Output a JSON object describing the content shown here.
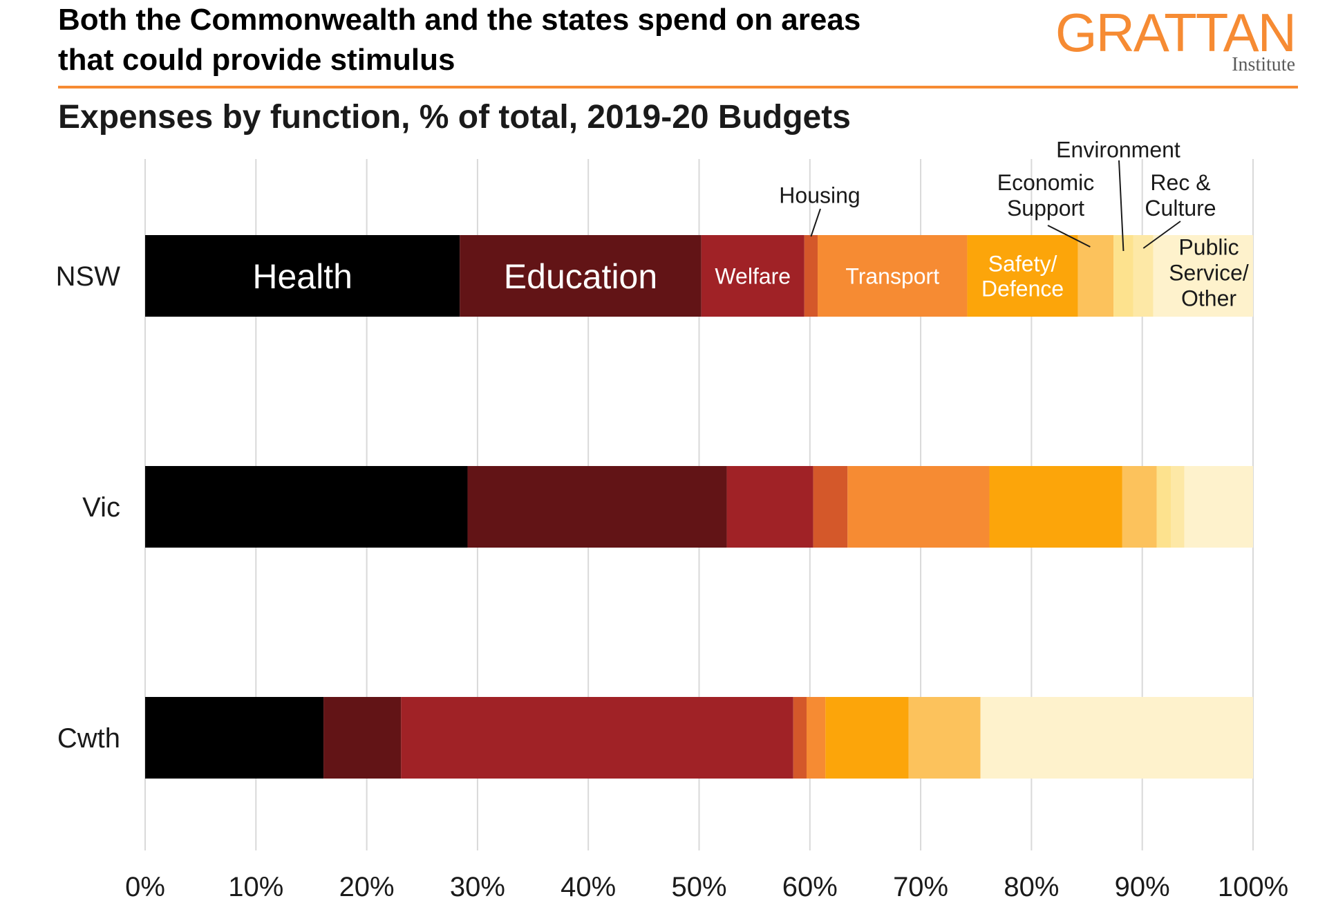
{
  "header": {
    "title_line1": "Both the Commonwealth and the states spend on areas",
    "title_line2": "that could provide stimulus",
    "subtitle": "Expenses by function, % of total, 2019-20 Budgets"
  },
  "logo": {
    "main": "GRATTAN",
    "sub": "Institute"
  },
  "chart_data": {
    "type": "bar",
    "orientation": "horizontal",
    "stacked": true,
    "title": "Expenses by function, % of total, 2019-20 Budgets",
    "xlabel": "",
    "ylabel": "",
    "xlim": [
      0,
      100
    ],
    "x_ticks": [
      "0%",
      "10%",
      "20%",
      "30%",
      "40%",
      "50%",
      "60%",
      "70%",
      "80%",
      "90%",
      "100%"
    ],
    "grid": true,
    "categories": [
      "NSW",
      "Vic",
      "Cwth"
    ],
    "colors": {
      "Health": "#000000",
      "Education": "#621416",
      "Welfare": "#a02226",
      "Housing": "#d4582a",
      "Transport": "#f68b33",
      "Safety/Defence": "#fca50a",
      "Economic Support": "#fcc25c",
      "Environment": "#fde28e",
      "Rec & Culture": "#fde8a6",
      "Public Service/Other": "#fef2cc"
    },
    "series": [
      {
        "name": "Health",
        "values": [
          28.4,
          29.1,
          16.1
        ]
      },
      {
        "name": "Education",
        "values": [
          21.8,
          23.4,
          7.0
        ]
      },
      {
        "name": "Welfare",
        "values": [
          9.3,
          7.8,
          35.4
        ]
      },
      {
        "name": "Housing",
        "values": [
          1.2,
          3.1,
          1.2
        ]
      },
      {
        "name": "Transport",
        "values": [
          13.5,
          12.8,
          1.7
        ]
      },
      {
        "name": "Safety/Defence",
        "values": [
          10.0,
          12.0,
          7.5
        ]
      },
      {
        "name": "Economic Support",
        "values": [
          3.2,
          3.1,
          6.5
        ]
      },
      {
        "name": "Environment",
        "values": [
          1.8,
          1.3,
          0.0
        ]
      },
      {
        "name": "Rec & Culture",
        "values": [
          1.8,
          1.2,
          0.0
        ]
      },
      {
        "name": "Public Service/Other",
        "values": [
          9.0,
          6.2,
          24.6
        ]
      }
    ],
    "bar_labels": {
      "Health": "Health",
      "Education": "Education",
      "Welfare": "Welfare",
      "Transport": "Transport",
      "Safety/Defence": [
        "Safety/",
        "Defence"
      ]
    },
    "callouts": {
      "Housing": [
        "Housing"
      ],
      "Economic Support": [
        "Economic",
        "Support"
      ],
      "Environment": [
        "Environment"
      ],
      "Rec & Culture": [
        "Rec &",
        "Culture"
      ],
      "Public Service/Other": [
        "Public",
        "Service/",
        "Other"
      ]
    }
  }
}
